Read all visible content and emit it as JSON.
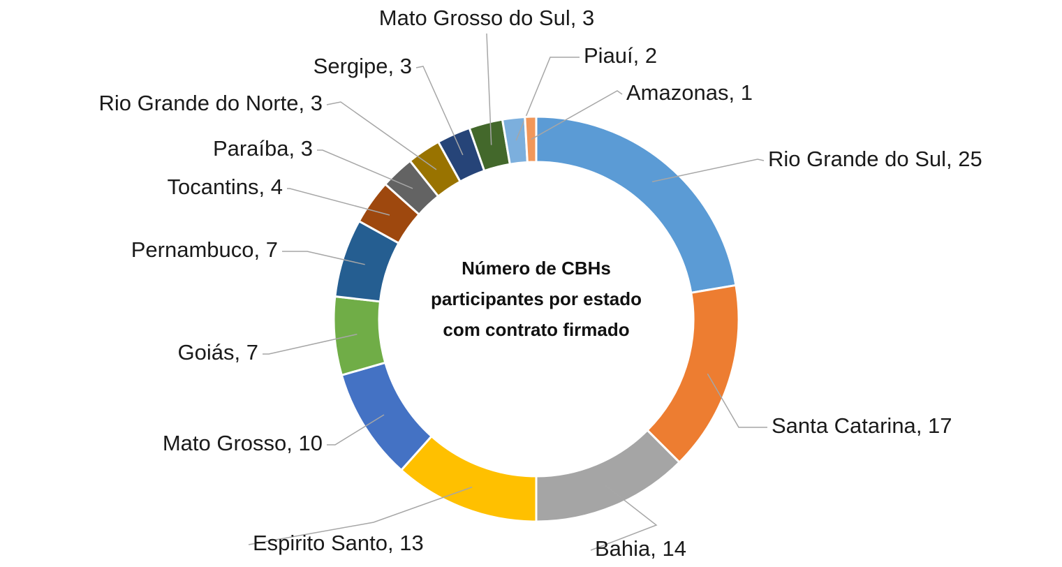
{
  "chart_data": {
    "type": "donut",
    "title": "Número de CBHs participantes por estado com contrato firmado",
    "categories": [
      "Rio Grande do Sul",
      "Santa Catarina",
      "Bahia",
      "Espirito Santo",
      "Mato Grosso",
      "Goiás",
      "Pernambuco",
      "Tocantins",
      "Paraíba",
      "Rio Grande do Norte",
      "Sergipe",
      "Mato Grosso do Sul",
      "Piauí",
      "Amazonas"
    ],
    "values": [
      25,
      17,
      14,
      13,
      10,
      7,
      7,
      4,
      3,
      3,
      3,
      3,
      2,
      1
    ],
    "colors": [
      "#5b9bd5",
      "#ed7d31",
      "#a5a5a5",
      "#ffc000",
      "#4472c4",
      "#70ad47",
      "#255e91",
      "#9e480e",
      "#636363",
      "#997300",
      "#264478",
      "#43682b",
      "#7cafdd",
      "#f1975a"
    ]
  }
}
